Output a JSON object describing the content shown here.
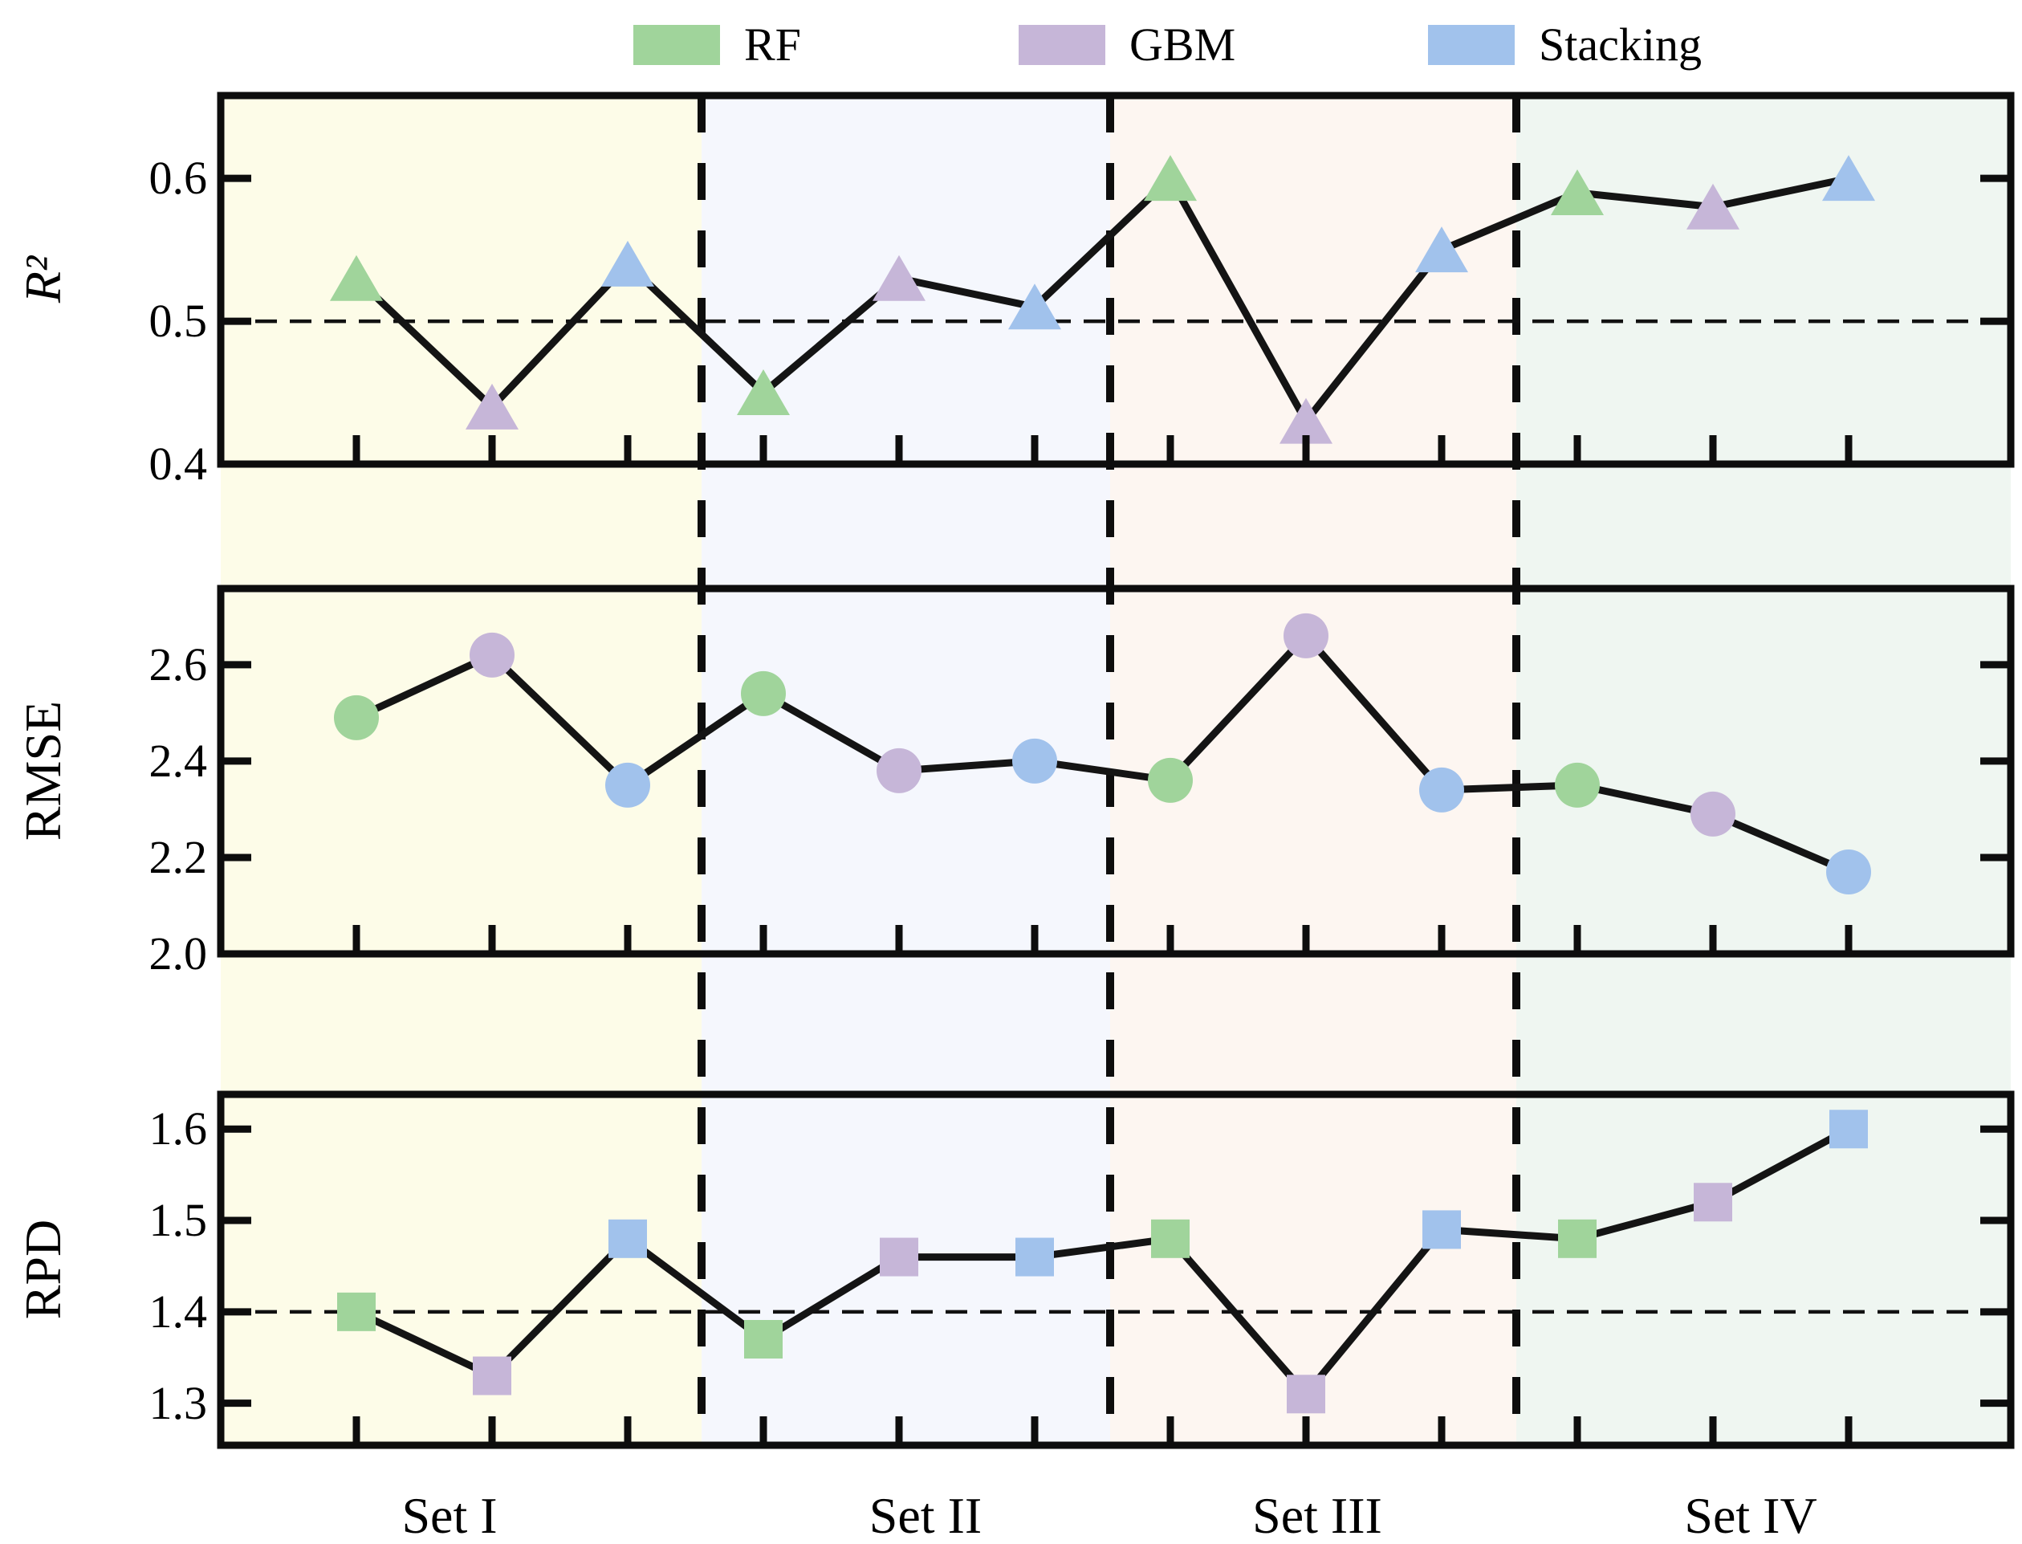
{
  "legend": {
    "items": [
      {
        "label": "RF",
        "color": "#a0d49b"
      },
      {
        "label": "GBM",
        "color": "#c6b6d8"
      },
      {
        "label": "Stacking",
        "color": "#a1c2ec"
      }
    ]
  },
  "x_axis": {
    "group_labels": [
      "Set I",
      "Set II",
      "Set III",
      "Set IV"
    ]
  },
  "bands": {
    "colors": [
      "#fdfce8",
      "#f5f7fd",
      "#fdf6f1",
      "#eff6f1"
    ]
  },
  "styles": {
    "series_line_color": "#141414",
    "axis_color": "#0d0d0d",
    "separator_color": "#0d0d0d",
    "ref_line_color": "#111111"
  },
  "chart_data": [
    {
      "type": "line",
      "panel": "r2",
      "ylabel": "R²",
      "marker": "triangle",
      "categories": [
        "Set I",
        "Set II",
        "Set III",
        "Set IV"
      ],
      "points_per_category": [
        "RF",
        "GBM",
        "Stacking"
      ],
      "values": [
        0.53,
        0.44,
        0.54,
        0.45,
        0.53,
        0.51,
        0.6,
        0.43,
        0.55,
        0.59,
        0.58,
        0.6
      ],
      "values_by_set": {
        "Set I": {
          "RF": 0.53,
          "GBM": 0.44,
          "Stacking": 0.54
        },
        "Set II": {
          "RF": 0.45,
          "GBM": 0.53,
          "Stacking": 0.51
        },
        "Set III": {
          "RF": 0.6,
          "GBM": 0.43,
          "Stacking": 0.55
        },
        "Set IV": {
          "RF": 0.59,
          "GBM": 0.58,
          "Stacking": 0.6
        }
      },
      "yticks": [
        0.4,
        0.5,
        0.6
      ],
      "ytick_labels": [
        "0.4",
        "0.5",
        "0.6"
      ],
      "ylim": [
        0.4,
        0.658
      ],
      "ref_line": 0.5,
      "grid": false,
      "legend_position": "top"
    },
    {
      "type": "line",
      "panel": "rmse",
      "ylabel": "RMSE",
      "marker": "circle",
      "categories": [
        "Set I",
        "Set II",
        "Set III",
        "Set IV"
      ],
      "points_per_category": [
        "RF",
        "GBM",
        "Stacking"
      ],
      "values": [
        2.49,
        2.62,
        2.35,
        2.54,
        2.38,
        2.4,
        2.36,
        2.66,
        2.34,
        2.35,
        2.29,
        2.17
      ],
      "values_by_set": {
        "Set I": {
          "RF": 2.49,
          "GBM": 2.62,
          "Stacking": 2.35
        },
        "Set II": {
          "RF": 2.54,
          "GBM": 2.38,
          "Stacking": 2.4
        },
        "Set III": {
          "RF": 2.36,
          "GBM": 2.66,
          "Stacking": 2.34
        },
        "Set IV": {
          "RF": 2.35,
          "GBM": 2.29,
          "Stacking": 2.17
        }
      },
      "yticks": [
        2.0,
        2.2,
        2.4,
        2.6
      ],
      "ytick_labels": [
        "2.0",
        "2.2",
        "2.4",
        "2.6"
      ],
      "ylim": [
        2.0,
        2.758
      ],
      "ref_line": null,
      "grid": false,
      "legend_position": "none"
    },
    {
      "type": "line",
      "panel": "rpd",
      "ylabel": "RPD",
      "marker": "square",
      "categories": [
        "Set I",
        "Set II",
        "Set III",
        "Set IV"
      ],
      "points_per_category": [
        "RF",
        "GBM",
        "Stacking"
      ],
      "values": [
        1.4,
        1.33,
        1.48,
        1.37,
        1.46,
        1.46,
        1.48,
        1.31,
        1.49,
        1.48,
        1.52,
        1.6
      ],
      "values_by_set": {
        "Set I": {
          "RF": 1.4,
          "GBM": 1.33,
          "Stacking": 1.48
        },
        "Set II": {
          "RF": 1.37,
          "GBM": 1.46,
          "Stacking": 1.46
        },
        "Set III": {
          "RF": 1.48,
          "GBM": 1.31,
          "Stacking": 1.49
        },
        "Set IV": {
          "RF": 1.48,
          "GBM": 1.52,
          "Stacking": 1.6
        }
      },
      "yticks": [
        1.3,
        1.4,
        1.5,
        1.6
      ],
      "ytick_labels": [
        "1.3",
        "1.4",
        "1.5",
        "1.6"
      ],
      "ylim": [
        1.254,
        1.638
      ],
      "ref_line": 1.4,
      "grid": false,
      "legend_position": "none"
    }
  ]
}
